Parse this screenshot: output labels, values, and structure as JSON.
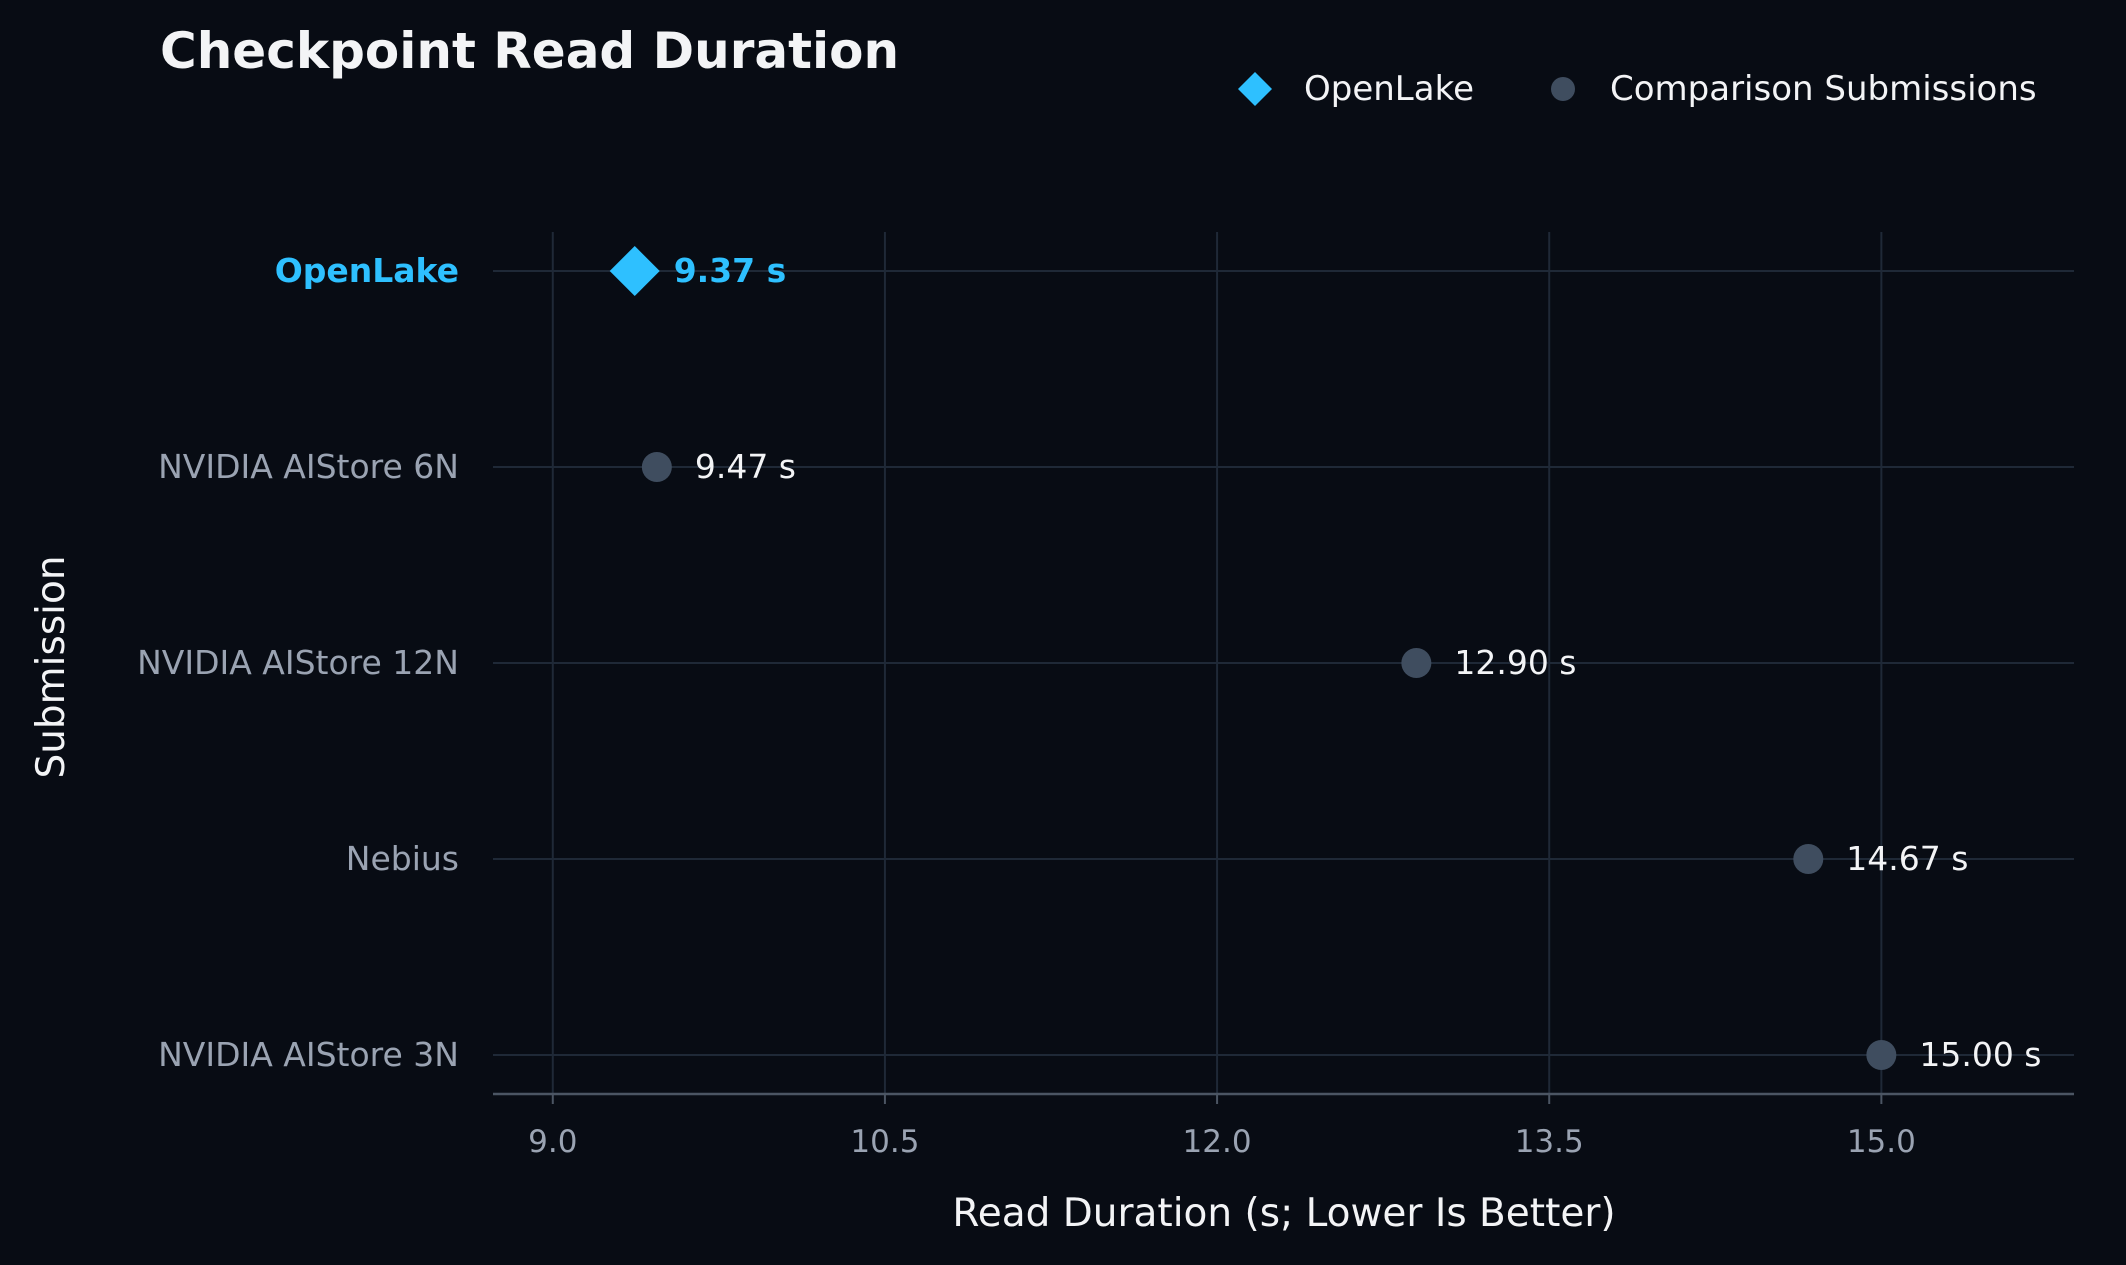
{
  "chart_data": {
    "type": "scatter",
    "title": "Checkpoint Read Duration",
    "xlabel": "Read Duration (s; Lower Is Better)",
    "ylabel": "Submission",
    "xlim": [
      8.73,
      15.87
    ],
    "xticks": [
      "9.0",
      "10.5",
      "12.0",
      "13.5",
      "15.0"
    ],
    "xtick_values": [
      9.0,
      10.5,
      12.0,
      13.5,
      15.0
    ],
    "grid": true,
    "legend": {
      "placement": "top-right",
      "entries": [
        {
          "label": "OpenLake",
          "marker": "diamond",
          "color": "#2ec0ff"
        },
        {
          "label": "Comparison Submissions",
          "marker": "circle",
          "color": "#3f4d5f"
        }
      ]
    },
    "categories": [
      "OpenLake",
      "NVIDIA AIStore 6N",
      "NVIDIA AIStore 12N",
      "Nebius",
      "NVIDIA AIStore 3N"
    ],
    "series": [
      {
        "name": "OpenLake",
        "points": [
          {
            "category": "OpenLake",
            "value": 9.37,
            "label": "9.37 s"
          }
        ]
      },
      {
        "name": "Comparison Submissions",
        "points": [
          {
            "category": "NVIDIA AIStore 6N",
            "value": 9.47,
            "label": "9.47 s"
          },
          {
            "category": "NVIDIA AIStore 12N",
            "value": 12.9,
            "label": "12.90 s"
          },
          {
            "category": "Nebius",
            "value": 14.67,
            "label": "14.67 s"
          },
          {
            "category": "NVIDIA AIStore 3N",
            "value": 15.0,
            "label": "15.00 s"
          }
        ]
      }
    ],
    "colors": {
      "background": "#080c14",
      "grid": "#1f2937",
      "highlight": "#2ec0ff",
      "comparison": "#3f4d5f",
      "tick_text": "#9aa3b2",
      "text": "#f3f4f6",
      "axis": "#4b5563"
    }
  }
}
